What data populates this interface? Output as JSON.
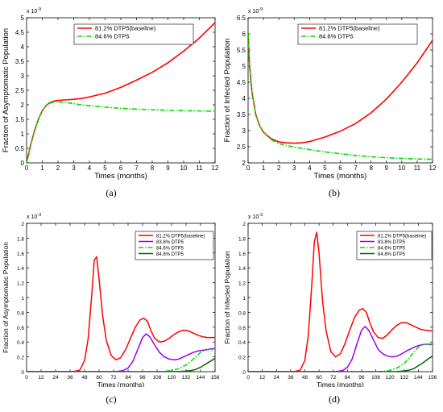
{
  "figure": {
    "captions": [
      "(a)",
      "(b)",
      "(c)",
      "(d)"
    ]
  },
  "chart_data": [
    {
      "type": "line",
      "panel_label": "(a)",
      "xlabel": "Times (months)",
      "ylabel": "Fraction of Asymptomatic Population",
      "exponent_label": "x 10",
      "exponent_power": "-9",
      "xlim": [
        0,
        12
      ],
      "ylim": [
        0,
        5
      ],
      "xticks": [
        0,
        1,
        2,
        3,
        4,
        5,
        6,
        7,
        8,
        9,
        10,
        11,
        12
      ],
      "yticks": [
        0,
        0.5,
        1,
        1.5,
        2,
        2.5,
        3,
        3.5,
        4,
        4.5,
        5
      ],
      "ytick_labels": [
        "0",
        "0.5",
        "1",
        "1.5",
        "2",
        "2.5",
        "3",
        "3.5",
        "4",
        "4.5",
        "5"
      ],
      "legend_position": "top-center",
      "series": [
        {
          "name": "81.2% DTP5(baseline)",
          "color": "#ff0000",
          "style": "solid",
          "x": [
            0,
            0.25,
            0.5,
            0.75,
            1,
            1.25,
            1.5,
            1.75,
            2,
            2.5,
            3,
            3.5,
            4,
            5,
            6,
            7,
            8,
            9,
            10,
            11,
            12
          ],
          "y": [
            0,
            0.6,
            1.1,
            1.5,
            1.8,
            1.98,
            2.08,
            2.13,
            2.15,
            2.17,
            2.19,
            2.22,
            2.27,
            2.4,
            2.6,
            2.85,
            3.12,
            3.45,
            3.85,
            4.3,
            4.83
          ]
        },
        {
          "name": "84.6% DTP5",
          "color": "#00dd00",
          "style": "dashdot",
          "x": [
            0,
            0.25,
            0.5,
            0.75,
            1,
            1.25,
            1.5,
            1.75,
            2,
            2.5,
            3,
            3.5,
            4,
            5,
            6,
            7,
            8,
            9,
            10,
            11,
            12
          ],
          "y": [
            0,
            0.6,
            1.1,
            1.5,
            1.8,
            1.98,
            2.06,
            2.09,
            2.1,
            2.08,
            2.04,
            2.0,
            1.97,
            1.92,
            1.88,
            1.85,
            1.83,
            1.81,
            1.8,
            1.79,
            1.78
          ]
        }
      ]
    },
    {
      "type": "line",
      "panel_label": "(b)",
      "xlabel": "Times (months)",
      "ylabel": "Fraction of Infected Population",
      "exponent_label": "x 10",
      "exponent_power": "-9",
      "xlim": [
        0,
        12
      ],
      "ylim": [
        2,
        6.5
      ],
      "xticks": [
        0,
        1,
        2,
        3,
        4,
        5,
        6,
        7,
        8,
        9,
        10,
        11,
        12
      ],
      "yticks": [
        2,
        2.5,
        3,
        3.5,
        4,
        4.5,
        5,
        5.5,
        6,
        6.5
      ],
      "ytick_labels": [
        "2",
        "2.5",
        "3",
        "3.5",
        "4",
        "4.5",
        "5",
        "5.5",
        "6",
        "6.5"
      ],
      "legend_position": "top-right",
      "series": [
        {
          "name": "81.2% DTP5(baseline)",
          "color": "#ff0000",
          "style": "solid",
          "x": [
            0,
            0.1,
            0.25,
            0.5,
            0.75,
            1,
            1.5,
            2,
            2.5,
            3,
            3.5,
            4,
            5,
            6,
            7,
            8,
            9,
            10,
            11,
            12
          ],
          "y": [
            6.0,
            5.0,
            4.2,
            3.5,
            3.15,
            2.95,
            2.75,
            2.65,
            2.62,
            2.61,
            2.62,
            2.66,
            2.8,
            2.98,
            3.22,
            3.55,
            3.98,
            4.5,
            5.1,
            5.8
          ]
        },
        {
          "name": "84.6% DTP5",
          "color": "#00dd00",
          "style": "dashdot",
          "x": [
            0,
            0.1,
            0.25,
            0.5,
            0.75,
            1,
            1.5,
            2,
            2.5,
            3,
            3.5,
            4,
            5,
            6,
            7,
            8,
            9,
            10,
            11,
            12
          ],
          "y": [
            6.0,
            5.0,
            4.2,
            3.5,
            3.15,
            2.95,
            2.72,
            2.6,
            2.54,
            2.49,
            2.45,
            2.41,
            2.34,
            2.28,
            2.23,
            2.19,
            2.16,
            2.14,
            2.12,
            2.11
          ]
        }
      ]
    },
    {
      "type": "line",
      "panel_label": "(c)",
      "xlabel": "Times (months)",
      "ylabel": "Fraction of Asymptomatic Population",
      "exponent_label": "x 10",
      "exponent_power": "-3",
      "xlim": [
        0,
        156
      ],
      "ylim": [
        0,
        2
      ],
      "xticks": [
        0,
        12,
        24,
        36,
        48,
        60,
        72,
        84,
        96,
        108,
        120,
        132,
        144,
        156
      ],
      "yticks": [
        0,
        0.2,
        0.4,
        0.6,
        0.8,
        1,
        1.2,
        1.4,
        1.6,
        1.8,
        2
      ],
      "ytick_labels": [
        "0",
        "0.2",
        "0.4",
        "0.6",
        "0.8",
        "1",
        "1.2",
        "1.4",
        "1.6",
        "1.8",
        "2"
      ],
      "legend_position": "top-right",
      "series": [
        {
          "name": "81.2% DTP5(baseline)",
          "color": "#ff0000",
          "style": "solid",
          "x": [
            0,
            36,
            40,
            44,
            48,
            51,
            54,
            56,
            58,
            60,
            63,
            66,
            70,
            74,
            78,
            82,
            86,
            90,
            94,
            97,
            100,
            103,
            106,
            110,
            114,
            118,
            122,
            126,
            130,
            134,
            138,
            142,
            146,
            150,
            154,
            156
          ],
          "y": [
            0,
            0,
            0.005,
            0.02,
            0.15,
            0.45,
            1.05,
            1.5,
            1.55,
            1.25,
            0.75,
            0.42,
            0.22,
            0.16,
            0.19,
            0.3,
            0.45,
            0.6,
            0.7,
            0.72,
            0.68,
            0.55,
            0.45,
            0.4,
            0.41,
            0.45,
            0.5,
            0.54,
            0.56,
            0.55,
            0.52,
            0.49,
            0.47,
            0.46,
            0.46,
            0.46
          ]
        },
        {
          "name": "83.8% DTP5",
          "color": "#9900ee",
          "style": "solid",
          "x": [
            0,
            72,
            76,
            80,
            84,
            88,
            92,
            96,
            99,
            102,
            106,
            110,
            114,
            118,
            122,
            126,
            130,
            134,
            138,
            142,
            146,
            150,
            154,
            156
          ],
          "y": [
            0,
            0,
            0.005,
            0.015,
            0.05,
            0.14,
            0.3,
            0.46,
            0.51,
            0.47,
            0.36,
            0.26,
            0.2,
            0.17,
            0.16,
            0.17,
            0.2,
            0.23,
            0.26,
            0.28,
            0.29,
            0.3,
            0.31,
            0.31
          ]
        },
        {
          "name": "84.6% DTP5",
          "color": "#00dd00",
          "style": "dashdot",
          "x": [
            0,
            108,
            114,
            120,
            126,
            132,
            136,
            140,
            144,
            148,
            152,
            156
          ],
          "y": [
            0,
            0,
            0.005,
            0.015,
            0.04,
            0.09,
            0.14,
            0.2,
            0.26,
            0.29,
            0.3,
            0.28
          ]
        },
        {
          "name": "84.8% DTP5",
          "color": "#006600",
          "style": "solid",
          "x": [
            0,
            120,
            126,
            132,
            136,
            140,
            144,
            148,
            152,
            156
          ],
          "y": [
            0,
            0,
            0.003,
            0.008,
            0.015,
            0.03,
            0.06,
            0.1,
            0.14,
            0.18
          ]
        }
      ]
    },
    {
      "type": "line",
      "panel_label": "(d)",
      "xlabel": "Times (months)",
      "ylabel": "Fraction of Infected Population",
      "exponent_label": "x 10",
      "exponent_power": "-3",
      "xlim": [
        0,
        156
      ],
      "ylim": [
        0,
        2
      ],
      "xticks": [
        0,
        12,
        24,
        36,
        48,
        60,
        72,
        84,
        96,
        108,
        120,
        132,
        144,
        156
      ],
      "yticks": [
        0,
        0.2,
        0.4,
        0.6,
        0.8,
        1,
        1.2,
        1.4,
        1.6,
        1.8,
        2
      ],
      "ytick_labels": [
        "0",
        "0.2",
        "0.4",
        "0.6",
        "0.8",
        "1",
        "1.2",
        "1.4",
        "1.6",
        "1.8",
        "2"
      ],
      "legend_position": "top-right",
      "series": [
        {
          "name": "81.2% DTP5(baseline)",
          "color": "#ff0000",
          "style": "solid",
          "x": [
            0,
            36,
            40,
            44,
            48,
            51,
            54,
            56,
            58,
            60,
            63,
            66,
            70,
            74,
            78,
            82,
            86,
            90,
            94,
            97,
            100,
            103,
            106,
            110,
            114,
            118,
            122,
            126,
            130,
            134,
            138,
            142,
            146,
            150,
            154,
            156
          ],
          "y": [
            0,
            0,
            0.005,
            0.02,
            0.15,
            0.5,
            1.2,
            1.75,
            1.88,
            1.6,
            0.95,
            0.55,
            0.27,
            0.2,
            0.24,
            0.38,
            0.56,
            0.73,
            0.83,
            0.85,
            0.8,
            0.66,
            0.54,
            0.46,
            0.45,
            0.5,
            0.57,
            0.63,
            0.66,
            0.66,
            0.63,
            0.6,
            0.57,
            0.56,
            0.55,
            0.55
          ]
        },
        {
          "name": "83.8% DTP5",
          "color": "#9900ee",
          "style": "solid",
          "x": [
            0,
            72,
            76,
            80,
            84,
            88,
            92,
            96,
            99,
            102,
            106,
            110,
            114,
            118,
            122,
            126,
            130,
            134,
            138,
            142,
            146,
            150,
            154,
            156
          ],
          "y": [
            0,
            0,
            0.005,
            0.015,
            0.06,
            0.17,
            0.37,
            0.56,
            0.61,
            0.56,
            0.43,
            0.3,
            0.24,
            0.21,
            0.2,
            0.21,
            0.24,
            0.28,
            0.31,
            0.34,
            0.36,
            0.37,
            0.37,
            0.37
          ]
        },
        {
          "name": "84.6% DTP5",
          "color": "#00dd00",
          "style": "dashdot",
          "x": [
            0,
            108,
            114,
            120,
            126,
            132,
            136,
            140,
            144,
            148,
            152,
            156
          ],
          "y": [
            0,
            0,
            0.005,
            0.015,
            0.05,
            0.11,
            0.18,
            0.26,
            0.33,
            0.37,
            0.37,
            0.35
          ]
        },
        {
          "name": "84.8% DTP5",
          "color": "#006600",
          "style": "solid",
          "x": [
            0,
            120,
            126,
            132,
            136,
            140,
            144,
            148,
            152,
            156
          ],
          "y": [
            0,
            0,
            0.003,
            0.01,
            0.02,
            0.04,
            0.08,
            0.12,
            0.17,
            0.21
          ]
        }
      ]
    }
  ]
}
